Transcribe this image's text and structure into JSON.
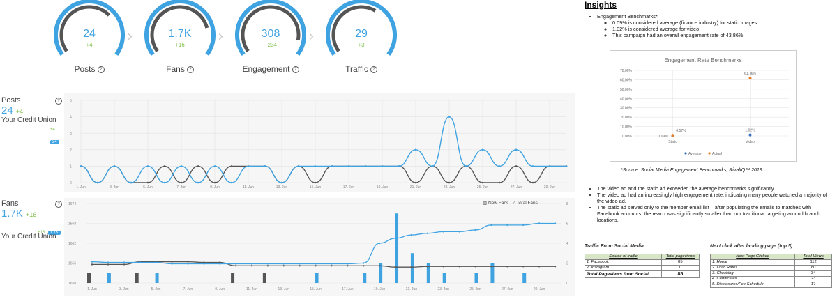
{
  "kpis": [
    {
      "value": "24",
      "delta": "+4",
      "label": "Posts",
      "fraction": 0.68
    },
    {
      "value": "1.7K",
      "delta": "+16",
      "label": "Fans",
      "fraction": 0.8
    },
    {
      "value": "308",
      "delta": "+234",
      "label": "Engagement",
      "fraction": 0.9
    },
    {
      "value": "29",
      "delta": "+3",
      "label": "Traffic",
      "fraction": 0.62
    }
  ],
  "posts_panel": {
    "title": "Posts",
    "value": "24",
    "delta": "+4",
    "sub": "Your Credit Union",
    "badge_delta": "+4",
    "badge": "24"
  },
  "fans_panel": {
    "title": "Fans",
    "value": "1.7K",
    "delta": "+16",
    "sub": "Your Credit Union",
    "badge_delta": "+16",
    "badge": "1.7K",
    "legend_new": "New Fans",
    "legend_total": "Total Fans"
  },
  "dates": [
    "1. Jun",
    "3. Jun",
    "5. Jun",
    "7. Jun",
    "9. Jun",
    "11. Jun",
    "13. Jun",
    "15. Jun",
    "17. Jun",
    "19. Jun",
    "21. Jun",
    "23. Jun",
    "25. Jun",
    "27. Jun",
    "29. Jun"
  ],
  "posts_y": [
    "0",
    "1",
    "2",
    "3",
    "4",
    "5"
  ],
  "fans_y_left": [
    "1650",
    "1656",
    "1662",
    "1668",
    "1674"
  ],
  "fans_y_right": [
    "0",
    "2",
    "4",
    "6",
    "8"
  ],
  "posts_series": {
    "yours": [
      1,
      0,
      1,
      0,
      1,
      0,
      1,
      0,
      1,
      0,
      1,
      1,
      0,
      1,
      1,
      1,
      1,
      1,
      1,
      1,
      2,
      1,
      4,
      1,
      2,
      1,
      2,
      1,
      1,
      1
    ],
    "other": [
      1,
      0,
      1,
      0,
      0,
      1,
      0,
      1,
      0,
      1,
      1,
      1,
      0,
      1,
      0,
      1,
      1,
      1,
      1,
      1,
      0,
      1,
      0,
      1,
      0,
      0,
      1,
      0,
      1,
      1
    ]
  },
  "fans_series": {
    "total_blue": [
      1656.4,
      1656.2,
      1656.2,
      1656.2,
      1656.2,
      1655.8,
      1655.8,
      1655.8,
      1655.8,
      1655.8,
      1655.8,
      1655.8,
      1655.8,
      1655.8,
      1655.8,
      1655.8,
      1655.8,
      1656,
      1662,
      1663.5,
      1664.5,
      1665,
      1665.5,
      1665.5,
      1666,
      1667.5,
      1667.5,
      1667.5,
      1668,
      1668
    ],
    "total_gray": [
      1655.6,
      1655.6,
      1655.6,
      1656.4,
      1656.4,
      1656.4,
      1656.4,
      1656.2,
      1656.2,
      1655.2,
      1655.2,
      1655.2,
      1655.2,
      1655.2,
      1655.2,
      1655.2,
      1655.2,
      1655.2,
      1655.2,
      1654.8,
      1654.8,
      1655,
      1655,
      1655,
      1655,
      1655,
      1655,
      1655,
      1655,
      1655
    ],
    "new_blue": [
      0,
      1,
      0,
      0,
      1,
      0,
      0,
      0,
      0,
      0,
      0,
      0,
      0,
      0,
      1,
      0,
      0,
      1,
      2,
      7,
      3,
      2,
      1,
      0,
      1,
      2,
      0,
      1,
      0,
      0
    ],
    "new_gray": [
      1,
      0,
      0,
      1,
      0,
      0,
      0,
      0,
      0,
      1,
      0,
      1,
      0,
      0,
      0,
      0,
      0,
      0,
      0,
      0,
      0,
      0,
      0,
      0,
      0,
      0,
      0,
      0,
      0,
      0
    ]
  },
  "colors": {
    "accent": "#3fa3e2",
    "gray": "#555555",
    "green": "#7cc04a",
    "orange": "#e87e24"
  },
  "insights": {
    "title": "Insights",
    "benchmark_heading": "Engagement Benchmarks*",
    "benchmark_items": [
      "0.09% is considered average (finance industry) for static images",
      "1.02% is considered average for video",
      "This campaign had an overall engagement rate of 43.86%"
    ],
    "source": "*Source: Social Media Engagement Benchmarks, RivalIQ™ 2019",
    "bullets": [
      "The video ad and the static ad exceeded the average benchmarks significantly.",
      "The video ad had an increasingly high engagement rate, indicating many people watched a majority of the video ad.",
      "The static ad served only to the member email list – after populating the emails to matches with Facebook accounts, the reach was significantly smaller than our traditional targeting around branch locations."
    ]
  },
  "chart_data": {
    "type": "scatter",
    "title": "Engagement Rate Benchmarks",
    "categories": [
      "Static",
      "Video"
    ],
    "series": [
      {
        "name": "Average",
        "values": [
          0.09,
          1.02
        ],
        "labels": [
          "0.09%",
          "1.02%"
        ]
      },
      {
        "name": "Actual",
        "values": [
          0.57,
          61.76
        ],
        "labels": [
          "0.57%",
          "61.76%"
        ]
      }
    ],
    "y_ticks": [
      "0.00%",
      "10.00%",
      "20.00%",
      "30.00%",
      "40.00%",
      "50.00%",
      "60.00%",
      "70.00%"
    ],
    "ylim": [
      0,
      70
    ],
    "legend": "bottom"
  },
  "traffic_table": {
    "title": "Traffic From Social Media",
    "headers": [
      "Source of traffic",
      "Total pageviews"
    ],
    "rows": [
      [
        "1.  Facebook",
        "85"
      ],
      [
        "2.  Instagram",
        "0"
      ]
    ],
    "total": [
      "Total Pageviews from Social",
      "85"
    ]
  },
  "click_table": {
    "title": "Next click after landing page (top 5)",
    "headers": [
      "Next Page Clicked",
      "Total Views"
    ],
    "rows": [
      [
        "1.  Home",
        "112"
      ],
      [
        "2.  Loan Rates",
        "80"
      ],
      [
        "3.  Checking",
        "34"
      ],
      [
        "4.  Certificates",
        "23"
      ],
      [
        "5.  Disclosures/Fee Schedule",
        "17"
      ]
    ]
  }
}
